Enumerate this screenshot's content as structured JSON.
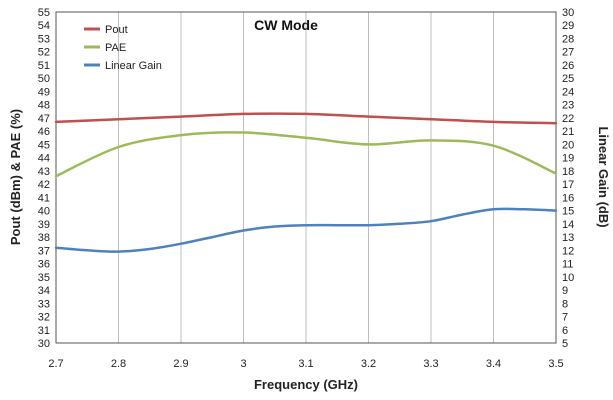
{
  "chart_data": {
    "type": "line",
    "title": "CW Mode",
    "xlabel": "Frequency (GHz)",
    "ylabel_left": "Pout (dBm) & PAE (%)",
    "ylabel_right": "Linear Gain (dB)",
    "xlim": [
      2.7,
      3.5
    ],
    "ylim_left": [
      30,
      55
    ],
    "ylim_right": [
      5,
      30
    ],
    "x_ticks": [
      "2.7",
      "2.8",
      "2.9",
      "3",
      "3.1",
      "3.2",
      "3.3",
      "3.4",
      "3.5"
    ],
    "y_left_ticks": [
      "30",
      "31",
      "32",
      "33",
      "34",
      "35",
      "36",
      "37",
      "38",
      "39",
      "40",
      "41",
      "42",
      "43",
      "44",
      "45",
      "46",
      "47",
      "48",
      "49",
      "50",
      "51",
      "52",
      "53",
      "54",
      "55"
    ],
    "y_right_ticks": [
      "5",
      "6",
      "7",
      "8",
      "9",
      "10",
      "11",
      "12",
      "13",
      "14",
      "15",
      "16",
      "17",
      "18",
      "19",
      "20",
      "21",
      "22",
      "23",
      "24",
      "25",
      "26",
      "27",
      "28",
      "29",
      "30"
    ],
    "grid": "vertical",
    "legend_position": "top-left",
    "series": [
      {
        "name": "Pout",
        "axis": "left",
        "color": "#c0504d",
        "x": [
          2.7,
          2.8,
          2.9,
          3.0,
          3.1,
          3.2,
          3.3,
          3.4,
          3.5
        ],
        "y": [
          46.7,
          46.9,
          47.1,
          47.3,
          47.3,
          47.1,
          46.9,
          46.7,
          46.6
        ]
      },
      {
        "name": "PAE",
        "axis": "left",
        "color": "#9bbb59",
        "x": [
          2.7,
          2.8,
          2.9,
          3.0,
          3.1,
          3.2,
          3.3,
          3.4,
          3.5
        ],
        "y": [
          42.6,
          44.8,
          45.7,
          45.9,
          45.5,
          45.0,
          45.3,
          44.9,
          42.8
        ]
      },
      {
        "name": "Linear Gain",
        "axis": "right",
        "color": "#4f81bd",
        "x": [
          2.7,
          2.75,
          2.8,
          2.85,
          2.9,
          2.95,
          3.0,
          3.05,
          3.1,
          3.15,
          3.2,
          3.25,
          3.3,
          3.35,
          3.4,
          3.45,
          3.5
        ],
        "y": [
          12.2,
          12.0,
          11.9,
          12.1,
          12.5,
          13.0,
          13.5,
          13.8,
          13.9,
          13.9,
          13.9,
          14.0,
          14.2,
          14.7,
          15.1,
          15.1,
          15.0
        ]
      }
    ]
  }
}
